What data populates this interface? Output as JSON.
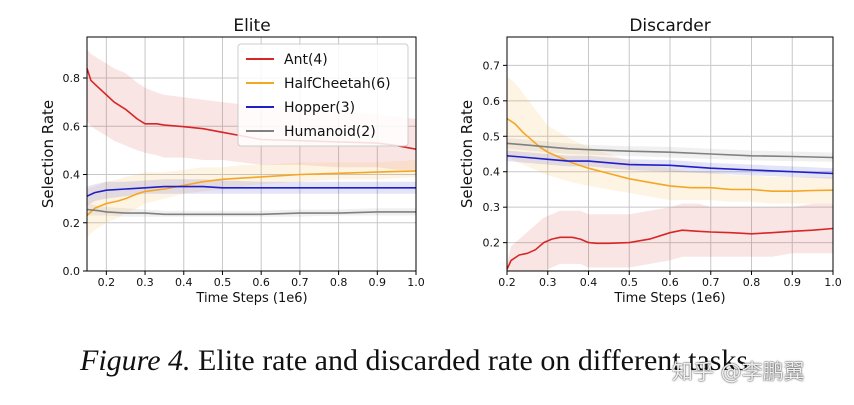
{
  "caption": {
    "label": "Figure 4.",
    "text": " Elite rate and discarded rate on different tasks"
  },
  "watermark": "知乎 @李鹏翼",
  "chart_data": [
    {
      "type": "line",
      "title": "Elite",
      "xlabel": "Time Steps (1e6)",
      "ylabel": "Selection Rate",
      "xlim": [
        0.15,
        1.0
      ],
      "ylim": [
        0.0,
        0.97
      ],
      "xticks": [
        0.2,
        0.3,
        0.4,
        0.5,
        0.6,
        0.7,
        0.8,
        0.9,
        1.0
      ],
      "xtick_labels": [
        "0.2",
        "0.3",
        "0.4",
        "0.5",
        "0.6",
        "0.7",
        "0.8",
        "0.9",
        "1.0"
      ],
      "yticks": [
        0.0,
        0.2,
        0.4,
        0.6,
        0.8
      ],
      "ytick_labels": [
        "0.0",
        "0.2",
        "0.4",
        "0.6",
        "0.8"
      ],
      "grid": true,
      "legend": "top-right",
      "series": [
        {
          "name": "Ant(4)",
          "color": "#d62728",
          "x": [
            0.15,
            0.16,
            0.18,
            0.2,
            0.22,
            0.25,
            0.28,
            0.3,
            0.33,
            0.35,
            0.4,
            0.45,
            0.5,
            0.55,
            0.6,
            0.7,
            0.8,
            0.9,
            0.95,
            1.0
          ],
          "y": [
            0.84,
            0.79,
            0.76,
            0.73,
            0.7,
            0.67,
            0.63,
            0.61,
            0.61,
            0.605,
            0.598,
            0.59,
            0.575,
            0.56,
            0.545,
            0.54,
            0.535,
            0.53,
            0.52,
            0.505
          ],
          "band_lower": [
            0.62,
            0.6,
            0.58,
            0.56,
            0.54,
            0.52,
            0.5,
            0.49,
            0.48,
            0.47,
            0.47,
            0.46,
            0.46,
            0.45,
            0.44,
            0.44,
            0.43,
            0.43,
            0.42,
            0.42
          ],
          "band_upper": [
            0.92,
            0.9,
            0.88,
            0.86,
            0.84,
            0.82,
            0.78,
            0.76,
            0.74,
            0.73,
            0.72,
            0.71,
            0.7,
            0.69,
            0.68,
            0.67,
            0.66,
            0.65,
            0.64,
            0.63
          ]
        },
        {
          "name": "HalfCheetah(6)",
          "color": "#f5a623",
          "x": [
            0.15,
            0.17,
            0.2,
            0.23,
            0.25,
            0.28,
            0.3,
            0.35,
            0.4,
            0.45,
            0.5,
            0.55,
            0.6,
            0.7,
            0.8,
            0.9,
            1.0
          ],
          "y": [
            0.23,
            0.26,
            0.28,
            0.29,
            0.3,
            0.32,
            0.33,
            0.34,
            0.355,
            0.37,
            0.38,
            0.385,
            0.39,
            0.4,
            0.405,
            0.41,
            0.415
          ],
          "band_lower": [
            0.14,
            0.17,
            0.2,
            0.22,
            0.24,
            0.26,
            0.28,
            0.3,
            0.32,
            0.33,
            0.34,
            0.35,
            0.36,
            0.37,
            0.38,
            0.38,
            0.39
          ],
          "band_upper": [
            0.34,
            0.35,
            0.37,
            0.38,
            0.39,
            0.4,
            0.41,
            0.41,
            0.42,
            0.43,
            0.43,
            0.44,
            0.44,
            0.45,
            0.45,
            0.45,
            0.46
          ]
        },
        {
          "name": "Hopper(3)",
          "color": "#1f1fc8",
          "x": [
            0.15,
            0.17,
            0.2,
            0.25,
            0.3,
            0.35,
            0.4,
            0.45,
            0.5,
            0.6,
            0.7,
            0.8,
            0.9,
            1.0
          ],
          "y": [
            0.31,
            0.325,
            0.335,
            0.34,
            0.345,
            0.35,
            0.35,
            0.35,
            0.345,
            0.345,
            0.345,
            0.345,
            0.345,
            0.345
          ],
          "band_lower": [
            0.27,
            0.29,
            0.3,
            0.31,
            0.32,
            0.32,
            0.32,
            0.32,
            0.32,
            0.32,
            0.32,
            0.32,
            0.32,
            0.32
          ],
          "band_upper": [
            0.35,
            0.36,
            0.37,
            0.37,
            0.375,
            0.38,
            0.38,
            0.38,
            0.375,
            0.37,
            0.37,
            0.37,
            0.37,
            0.37
          ]
        },
        {
          "name": "Humanoid(2)",
          "color": "#808080",
          "x": [
            0.15,
            0.18,
            0.2,
            0.25,
            0.3,
            0.35,
            0.4,
            0.5,
            0.6,
            0.7,
            0.8,
            0.9,
            1.0
          ],
          "y": [
            0.255,
            0.25,
            0.245,
            0.24,
            0.24,
            0.235,
            0.235,
            0.235,
            0.235,
            0.24,
            0.24,
            0.245,
            0.245
          ],
          "band_lower": [
            0.23,
            0.23,
            0.23,
            0.225,
            0.225,
            0.225,
            0.225,
            0.225,
            0.225,
            0.225,
            0.23,
            0.23,
            0.23
          ],
          "band_upper": [
            0.28,
            0.27,
            0.265,
            0.26,
            0.255,
            0.25,
            0.25,
            0.25,
            0.25,
            0.255,
            0.255,
            0.26,
            0.26
          ]
        }
      ]
    },
    {
      "type": "line",
      "title": "Discarder",
      "xlabel": "Time Steps (1e6)",
      "ylabel": "Selection Rate",
      "xlim": [
        0.2,
        1.0
      ],
      "ylim": [
        0.12,
        0.78
      ],
      "xticks": [
        0.2,
        0.3,
        0.4,
        0.5,
        0.6,
        0.7,
        0.8,
        0.9,
        1.0
      ],
      "xtick_labels": [
        "0.2",
        "0.3",
        "0.4",
        "0.5",
        "0.6",
        "0.7",
        "0.8",
        "0.9",
        "1.0"
      ],
      "yticks": [
        0.2,
        0.3,
        0.4,
        0.5,
        0.6,
        0.7
      ],
      "ytick_labels": [
        "0.2",
        "0.3",
        "0.4",
        "0.5",
        "0.6",
        "0.7"
      ],
      "grid": true,
      "legend": "none",
      "series": [
        {
          "name": "Ant(4)",
          "color": "#d62728",
          "x": [
            0.2,
            0.21,
            0.23,
            0.25,
            0.27,
            0.29,
            0.31,
            0.33,
            0.36,
            0.38,
            0.4,
            0.42,
            0.45,
            0.5,
            0.55,
            0.6,
            0.63,
            0.67,
            0.7,
            0.75,
            0.8,
            0.85,
            0.9,
            0.95,
            1.0
          ],
          "y": [
            0.125,
            0.15,
            0.165,
            0.17,
            0.18,
            0.2,
            0.21,
            0.215,
            0.215,
            0.21,
            0.2,
            0.198,
            0.198,
            0.2,
            0.21,
            0.228,
            0.235,
            0.232,
            0.23,
            0.228,
            0.225,
            0.228,
            0.232,
            0.235,
            0.24
          ],
          "band_lower": [
            0.12,
            0.12,
            0.12,
            0.12,
            0.12,
            0.12,
            0.13,
            0.14,
            0.14,
            0.14,
            0.13,
            0.13,
            0.13,
            0.13,
            0.14,
            0.15,
            0.16,
            0.16,
            0.16,
            0.16,
            0.16,
            0.16,
            0.17,
            0.17,
            0.17
          ],
          "band_upper": [
            0.14,
            0.19,
            0.21,
            0.23,
            0.25,
            0.27,
            0.28,
            0.29,
            0.29,
            0.29,
            0.28,
            0.28,
            0.28,
            0.28,
            0.29,
            0.3,
            0.31,
            0.31,
            0.3,
            0.3,
            0.3,
            0.3,
            0.3,
            0.31,
            0.31
          ]
        },
        {
          "name": "HalfCheetah(6)",
          "color": "#f5a623",
          "x": [
            0.2,
            0.22,
            0.24,
            0.26,
            0.28,
            0.3,
            0.33,
            0.36,
            0.4,
            0.45,
            0.5,
            0.55,
            0.6,
            0.65,
            0.7,
            0.75,
            0.8,
            0.85,
            0.9,
            0.95,
            1.0
          ],
          "y": [
            0.55,
            0.535,
            0.51,
            0.49,
            0.47,
            0.455,
            0.44,
            0.425,
            0.41,
            0.395,
            0.38,
            0.37,
            0.36,
            0.355,
            0.355,
            0.35,
            0.35,
            0.345,
            0.345,
            0.347,
            0.348
          ],
          "band_lower": [
            0.44,
            0.43,
            0.42,
            0.41,
            0.4,
            0.39,
            0.38,
            0.37,
            0.36,
            0.35,
            0.34,
            0.33,
            0.32,
            0.32,
            0.32,
            0.315,
            0.315,
            0.31,
            0.31,
            0.31,
            0.31
          ],
          "band_upper": [
            0.67,
            0.65,
            0.62,
            0.59,
            0.56,
            0.53,
            0.51,
            0.49,
            0.47,
            0.45,
            0.43,
            0.42,
            0.41,
            0.4,
            0.4,
            0.39,
            0.39,
            0.385,
            0.385,
            0.385,
            0.385
          ]
        },
        {
          "name": "Hopper(3)",
          "color": "#1f1fc8",
          "x": [
            0.2,
            0.25,
            0.3,
            0.35,
            0.4,
            0.5,
            0.6,
            0.7,
            0.8,
            0.9,
            1.0
          ],
          "y": [
            0.445,
            0.44,
            0.435,
            0.43,
            0.43,
            0.42,
            0.418,
            0.41,
            0.405,
            0.4,
            0.395
          ],
          "band_lower": [
            0.43,
            0.425,
            0.42,
            0.415,
            0.415,
            0.405,
            0.4,
            0.395,
            0.39,
            0.385,
            0.38
          ],
          "band_upper": [
            0.46,
            0.455,
            0.45,
            0.445,
            0.445,
            0.435,
            0.433,
            0.425,
            0.42,
            0.415,
            0.41
          ]
        },
        {
          "name": "Humanoid(2)",
          "color": "#808080",
          "x": [
            0.2,
            0.25,
            0.3,
            0.35,
            0.4,
            0.5,
            0.6,
            0.7,
            0.8,
            0.9,
            1.0
          ],
          "y": [
            0.48,
            0.475,
            0.47,
            0.465,
            0.462,
            0.458,
            0.455,
            0.45,
            0.445,
            0.443,
            0.44
          ],
          "band_lower": [
            0.465,
            0.46,
            0.455,
            0.45,
            0.448,
            0.444,
            0.44,
            0.436,
            0.432,
            0.43,
            0.428
          ],
          "band_upper": [
            0.495,
            0.49,
            0.485,
            0.48,
            0.476,
            0.472,
            0.47,
            0.465,
            0.46,
            0.457,
            0.454
          ]
        }
      ]
    }
  ]
}
